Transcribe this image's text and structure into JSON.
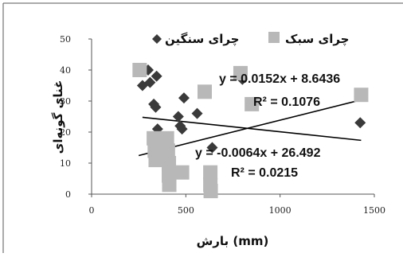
{
  "chart_data": {
    "type": "scatter",
    "xlabel": "بارش (mm)",
    "ylabel": "غنای گونه‌ای",
    "xlim": [
      0,
      1500
    ],
    "ylim": [
      0,
      50
    ],
    "x_ticks": [
      "0",
      "500",
      "1000",
      "1500"
    ],
    "y_ticks": [
      "0",
      "10",
      "20",
      "30",
      "40",
      "50"
    ],
    "grid": false,
    "legend_position": "top",
    "series": [
      {
        "name": "چرای سنگین",
        "marker": "diamond",
        "color": "#3a3a3a",
        "points": [
          {
            "x": 270,
            "y": 35
          },
          {
            "x": 300,
            "y": 40
          },
          {
            "x": 310,
            "y": 36
          },
          {
            "x": 330,
            "y": 29
          },
          {
            "x": 340,
            "y": 28
          },
          {
            "x": 345,
            "y": 38
          },
          {
            "x": 350,
            "y": 21
          },
          {
            "x": 460,
            "y": 25
          },
          {
            "x": 470,
            "y": 22
          },
          {
            "x": 480,
            "y": 21
          },
          {
            "x": 490,
            "y": 31
          },
          {
            "x": 560,
            "y": 26
          },
          {
            "x": 640,
            "y": 15
          },
          {
            "x": 800,
            "y": 37
          },
          {
            "x": 1425,
            "y": 23
          }
        ],
        "trendline": {
          "slope": -0.0064,
          "intercept": 26.492,
          "x_range": [
            270,
            1430
          ]
        }
      },
      {
        "name": "چرای سبک",
        "marker": "square",
        "color": "#b8b8b8",
        "points": [
          {
            "x": 255,
            "y": 40
          },
          {
            "x": 330,
            "y": 18
          },
          {
            "x": 335,
            "y": 14
          },
          {
            "x": 340,
            "y": 11
          },
          {
            "x": 400,
            "y": 18
          },
          {
            "x": 405,
            "y": 14
          },
          {
            "x": 410,
            "y": 10
          },
          {
            "x": 410,
            "y": 6
          },
          {
            "x": 412,
            "y": 3
          },
          {
            "x": 480,
            "y": 7
          },
          {
            "x": 600,
            "y": 33
          },
          {
            "x": 630,
            "y": 7
          },
          {
            "x": 630,
            "y": 3
          },
          {
            "x": 632,
            "y": 1
          },
          {
            "x": 790,
            "y": 39
          },
          {
            "x": 850,
            "y": 29
          },
          {
            "x": 1430,
            "y": 32
          }
        ],
        "trendline": {
          "slope": 0.0152,
          "intercept": 8.6436,
          "x_range": [
            250,
            1430
          ]
        }
      }
    ],
    "annotations": [
      {
        "text": "y = 0.0152x + 8.6436",
        "series": 1
      },
      {
        "text": "R² = 0.1076",
        "series": 1
      },
      {
        "text": "y = -0.0064x + 26.492",
        "series": 0
      },
      {
        "text": "R² = 0.0215",
        "series": 0
      }
    ]
  }
}
